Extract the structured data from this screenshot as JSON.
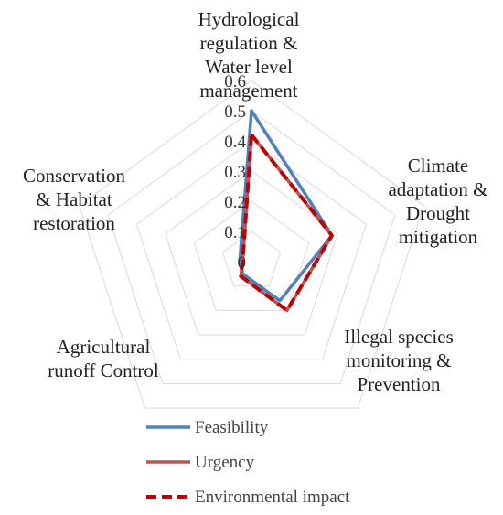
{
  "chart_data": {
    "type": "radar",
    "axes": [
      [
        "Hydrological",
        "regulation &",
        "Water level",
        "management"
      ],
      [
        "Climate",
        "adaptation &",
        "Drought",
        "mitigation"
      ],
      [
        "Illegal species",
        "monitoring &",
        "Prevention"
      ],
      [
        "Agricultural",
        "runoff Control"
      ],
      [
        "Conservation",
        "& Habitat",
        "restoration"
      ]
    ],
    "ticks": [
      "0",
      "0.1",
      "0.2",
      "0.3",
      "0.4",
      "0.5",
      "0.6"
    ],
    "rmax": 0.6,
    "series": [
      {
        "name": "Feasibility",
        "values": [
          0.5,
          0.28,
          0.16,
          0.05,
          0.04
        ],
        "color": "#4f81bd",
        "dash": "solid"
      },
      {
        "name": "Urgency",
        "values": [
          0.42,
          0.28,
          0.2,
          0.06,
          0.03
        ],
        "color": "#c0504d",
        "dash": "solid"
      },
      {
        "name": "Environmental impact",
        "values": [
          0.42,
          0.28,
          0.2,
          0.06,
          0.03
        ],
        "color": "#c00000",
        "dash": "dashed"
      }
    ],
    "grid": true,
    "legend_position": "bottom"
  }
}
